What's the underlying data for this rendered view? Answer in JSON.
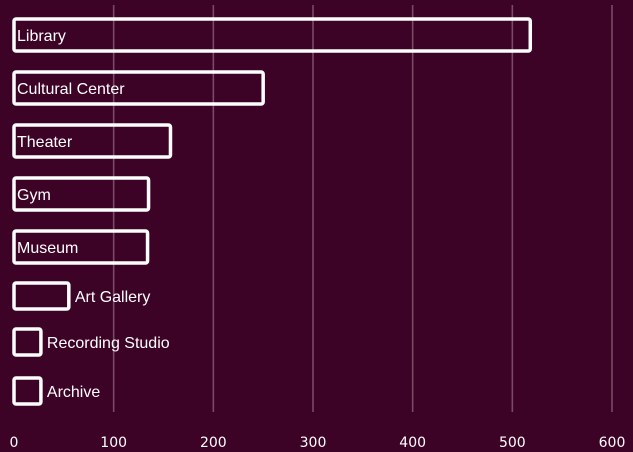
{
  "chart_data": {
    "type": "bar",
    "orientation": "horizontal",
    "categories": [
      "Library",
      "Cultural Center",
      "Theater",
      "Gym",
      "Museum",
      "Art Gallery",
      "Recording Studio",
      "Archive"
    ],
    "values": [
      518,
      250,
      157,
      135,
      134,
      55,
      27,
      27
    ],
    "xlim": [
      0,
      600
    ],
    "xticks": [
      "0",
      "100",
      "200",
      "300",
      "400",
      "500",
      "600"
    ],
    "grid": "vertical",
    "colors": {
      "background": "#3d0327",
      "bar_stroke": "#ffffff",
      "grid": "#7a4a66",
      "text": "#ffffff"
    }
  }
}
